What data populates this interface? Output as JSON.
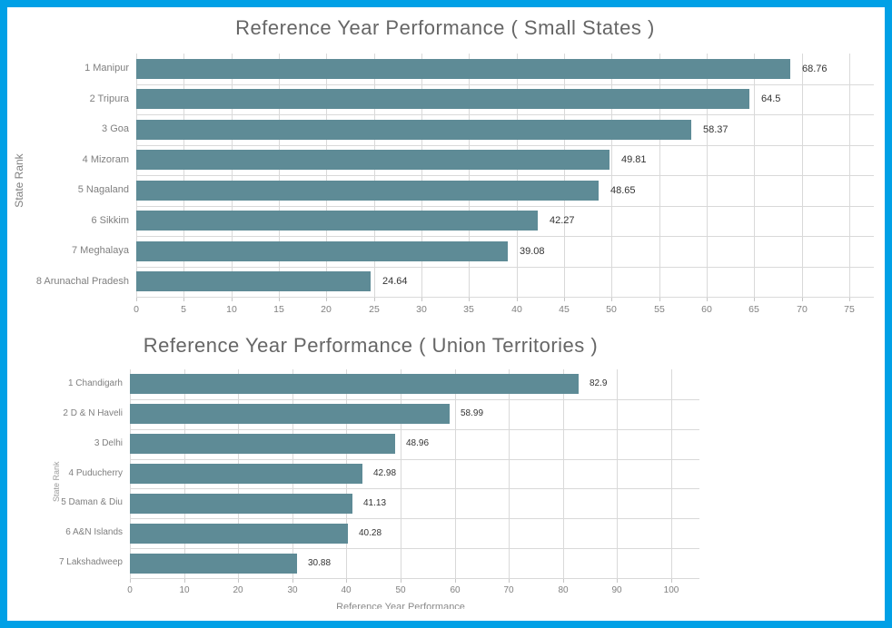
{
  "page": {
    "background_color": "#FFFFFF",
    "border_color": "#00A0E6"
  },
  "chart_data": [
    {
      "type": "bar",
      "orientation": "horizontal",
      "title": "Reference Year Performance ( Small States )",
      "xlabel": "",
      "ylabel": "State Rank",
      "categories": [
        "1 Manipur",
        "2 Tripura",
        "3 Goa",
        "4 Mizoram",
        "5 Nagaland",
        "6 Sikkim",
        "7 Meghalaya",
        "8 Arunachal Pradesh"
      ],
      "values": [
        68.76,
        64.5,
        58.37,
        49.81,
        48.65,
        42.27,
        39.08,
        24.64
      ],
      "value_labels": [
        "68.76",
        "64.5",
        "58.37",
        "49.81",
        "48.65",
        "42.27",
        "39.08",
        "24.64"
      ],
      "xticks": [
        0,
        5,
        10,
        15,
        20,
        25,
        30,
        35,
        40,
        45,
        50,
        55,
        60,
        65,
        70,
        75
      ],
      "xlim": [
        0,
        77.6
      ],
      "bar_color": "#5E8B96",
      "grid": true,
      "legend": false
    },
    {
      "type": "bar",
      "orientation": "horizontal",
      "title": "Reference Year Performance ( Union Territories )",
      "xlabel": "Reference Year Performance",
      "xlabel_clipped": true,
      "ylabel": "State Rank",
      "ylabel_clipped": true,
      "categories": [
        "1 Chandigarh",
        "2 D & N Haveli",
        "3 Delhi",
        "4 Puducherry",
        "5 Daman & Diu",
        "6 A&N Islands",
        "7 Lakshadweep"
      ],
      "values": [
        82.9,
        58.99,
        48.96,
        42.98,
        41.13,
        40.28,
        30.88
      ],
      "value_labels": [
        "82.9",
        "58.99",
        "48.96",
        "42.98",
        "41.13",
        "40.28",
        "30.88"
      ],
      "xticks": [
        0,
        10,
        20,
        30,
        40,
        50,
        60,
        70,
        80,
        90,
        100
      ],
      "xlim": [
        0,
        105.2
      ],
      "bar_color": "#5E8B96",
      "grid": true,
      "legend": false
    }
  ]
}
